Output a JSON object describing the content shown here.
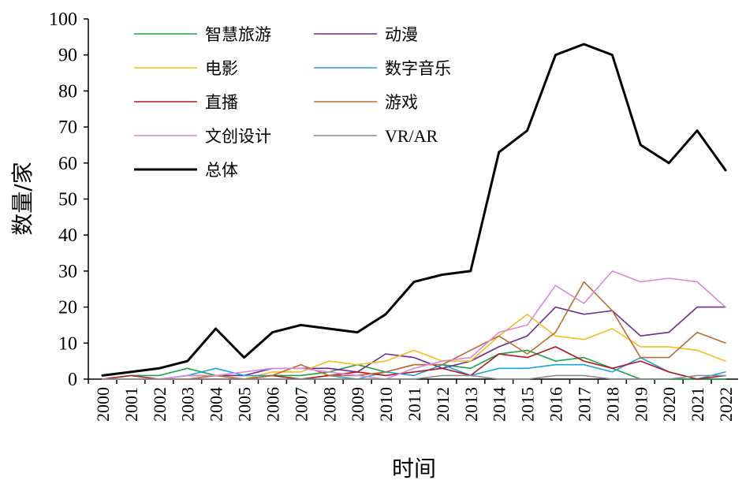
{
  "chart_data": {
    "type": "line",
    "xlabel": "时间",
    "ylabel": "数量/家",
    "ylim": [
      0,
      100
    ],
    "yticks": [
      0,
      10,
      20,
      30,
      40,
      50,
      60,
      70,
      80,
      90,
      100
    ],
    "legend_placement": "top-left",
    "grid": false,
    "x": [
      "2000",
      "2001",
      "2002",
      "2003",
      "2004",
      "2005",
      "2006",
      "2007",
      "2008",
      "2009",
      "2010",
      "2011",
      "2012",
      "2013",
      "2014",
      "2015",
      "2016",
      "2017",
      "2018",
      "2019",
      "2020",
      "2021",
      "2022"
    ],
    "series": [
      {
        "name": "智慧旅游",
        "color": "#1aa34a",
        "width": 1.6,
        "values": [
          0,
          1,
          1,
          3,
          1,
          0,
          1,
          1,
          2,
          4,
          2,
          4,
          4,
          3,
          7,
          8,
          5,
          6,
          3,
          0,
          0,
          0,
          0
        ]
      },
      {
        "name": "动漫",
        "color": "#6a2c91",
        "width": 1.6,
        "values": [
          0,
          0,
          0,
          1,
          1,
          1,
          3,
          3,
          3,
          2,
          7,
          6,
          3,
          5,
          9,
          12,
          20,
          18,
          19,
          12,
          13,
          20,
          20
        ]
      },
      {
        "name": "电影",
        "color": "#f2c01e",
        "width": 1.6,
        "values": [
          0,
          0,
          0,
          0,
          1,
          0,
          2,
          2,
          5,
          4,
          5,
          8,
          5,
          5,
          12,
          18,
          12,
          11,
          14,
          9,
          9,
          8,
          5
        ]
      },
      {
        "name": "数字音乐",
        "color": "#1ea3dc",
        "width": 1.6,
        "values": [
          0,
          0,
          0,
          1,
          3,
          1,
          1,
          0,
          1,
          0,
          2,
          1,
          4,
          1,
          3,
          3,
          4,
          4,
          2,
          6,
          2,
          0,
          2
        ]
      },
      {
        "name": "直播",
        "color": "#b0191e",
        "width": 1.6,
        "values": [
          0,
          1,
          0,
          0,
          0,
          0,
          1,
          0,
          1,
          2,
          1,
          2,
          3,
          1,
          7,
          6,
          9,
          5,
          3,
          5,
          2,
          0,
          1
        ]
      },
      {
        "name": "游戏",
        "color": "#c06a2c",
        "width": 1.6,
        "values": [
          0,
          0,
          0,
          0,
          1,
          0,
          1,
          4,
          1,
          1,
          2,
          4,
          4,
          8,
          12,
          7,
          13,
          27,
          19,
          6,
          6,
          13,
          10
        ]
      },
      {
        "name": "文创设计",
        "color": "#d98ad9",
        "width": 1.6,
        "values": [
          0,
          0,
          0,
          1,
          1,
          2,
          3,
          3,
          2,
          1,
          0,
          3,
          5,
          6,
          13,
          15,
          26,
          21,
          30,
          27,
          28,
          27,
          20
        ]
      },
      {
        "name": "VR/AR",
        "color": "#8c8c8c",
        "width": 1.6,
        "values": [
          0,
          0,
          0,
          0,
          0,
          0,
          0,
          0,
          0,
          0,
          0,
          0,
          1,
          1,
          0,
          0,
          1,
          1,
          0,
          0,
          0,
          1,
          1
        ]
      },
      {
        "name": "总体",
        "color": "#000000",
        "width": 3,
        "values": [
          1,
          2,
          3,
          5,
          14,
          6,
          13,
          15,
          14,
          13,
          18,
          27,
          29,
          30,
          63,
          69,
          90,
          93,
          90,
          65,
          60,
          69,
          58
        ]
      }
    ]
  }
}
